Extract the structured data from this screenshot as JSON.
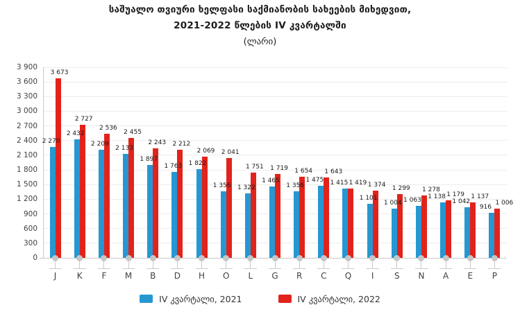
{
  "title": {
    "line1": "საშუალო თვიური ხელფასი საქმიანობის სახეების მიხედვით,",
    "line2": "2021-2022 წლების IV კვარტალში",
    "line3": "(ლარი)"
  },
  "legend": {
    "items": [
      {
        "label": "IV კვარტალი, 2021",
        "color": "#2797D2"
      },
      {
        "label": "IV კვარტალი, 2022",
        "color": "#E2231B"
      }
    ]
  },
  "chart_data": {
    "type": "bar",
    "title": "საშუალო თვიური ხელფასი საქმიანობის სახეების მიხედვით, 2021-2022 წლების IV კვარტალში (ლარი)",
    "categories": [
      "J",
      "K",
      "F",
      "M",
      "B",
      "D",
      "H",
      "O",
      "L",
      "G",
      "R",
      "C",
      "Q",
      "I",
      "S",
      "N",
      "A",
      "E",
      "P"
    ],
    "series": [
      {
        "name": "IV კვარტალი, 2021",
        "color": "#2797D2",
        "values": [
          2270,
          2432,
          2209,
          2133,
          1897,
          1763,
          1822,
          1356,
          1322,
          1465,
          1356,
          1475,
          1415,
          1101,
          1004,
          1063,
          1138,
          1042,
          916
        ]
      },
      {
        "name": "IV კვარტალი, 2022",
        "color": "#E2231B",
        "values": [
          3673,
          2727,
          2536,
          2455,
          2243,
          2212,
          2069,
          2041,
          1751,
          1719,
          1654,
          1643,
          1419,
          1374,
          1299,
          1278,
          1179,
          1137,
          1006
        ]
      }
    ],
    "xlabel": "",
    "ylabel": "",
    "ylim": [
      0,
      3900
    ],
    "ytick_step": 300,
    "grid": "horizontal",
    "legend_position": "bottom",
    "value_labels": true,
    "number_format": "space-thousands"
  }
}
